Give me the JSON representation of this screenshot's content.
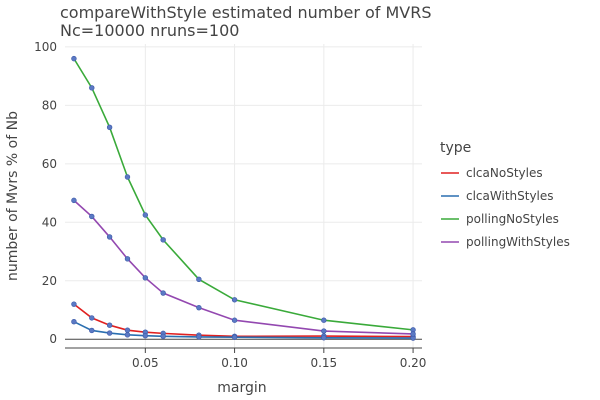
{
  "chart_data": {
    "type": "line",
    "title": "compareWithStyle estimated number of MVRS",
    "subtitle": "Nc=10000 nruns=100",
    "xlabel": "margin",
    "ylabel": "number of Mvrs % of Nb",
    "xlim": [
      0.005,
      0.205
    ],
    "ylim": [
      -3,
      101
    ],
    "x_ticks": [
      0.05,
      0.1,
      0.15,
      0.2
    ],
    "x_tick_labels": [
      "0.05",
      "0.10",
      "0.15",
      "0.20"
    ],
    "y_ticks": [
      0,
      20,
      40,
      60,
      80,
      100
    ],
    "y_tick_labels": [
      "0",
      "20",
      "40",
      "60",
      "80",
      "100"
    ],
    "grid": true,
    "legend_title": "type",
    "legend_position": "right",
    "x": [
      0.01,
      0.02,
      0.03,
      0.04,
      0.05,
      0.06,
      0.08,
      0.1,
      0.15,
      0.2
    ],
    "marker_color": "#5b79c4",
    "series": [
      {
        "name": "clcaNoStyles",
        "color": "#e02020",
        "values": [
          12.0,
          7.3,
          4.8,
          3.1,
          2.4,
          2.0,
          1.4,
          1.0,
          1.1,
          0.9
        ]
      },
      {
        "name": "clcaWithStyles",
        "color": "#2a6fb0",
        "values": [
          6.0,
          3.0,
          2.1,
          1.5,
          1.2,
          1.0,
          0.8,
          0.7,
          0.5,
          0.4
        ]
      },
      {
        "name": "pollingNoStyles",
        "color": "#3aaa3a",
        "values": [
          96.0,
          86.0,
          72.5,
          55.5,
          42.5,
          34.0,
          20.5,
          13.5,
          6.5,
          3.2
        ]
      },
      {
        "name": "pollingWithStyles",
        "color": "#9348b0",
        "values": [
          47.5,
          42.0,
          35.0,
          27.5,
          21.0,
          15.8,
          10.8,
          6.5,
          2.8,
          1.8
        ]
      }
    ]
  }
}
